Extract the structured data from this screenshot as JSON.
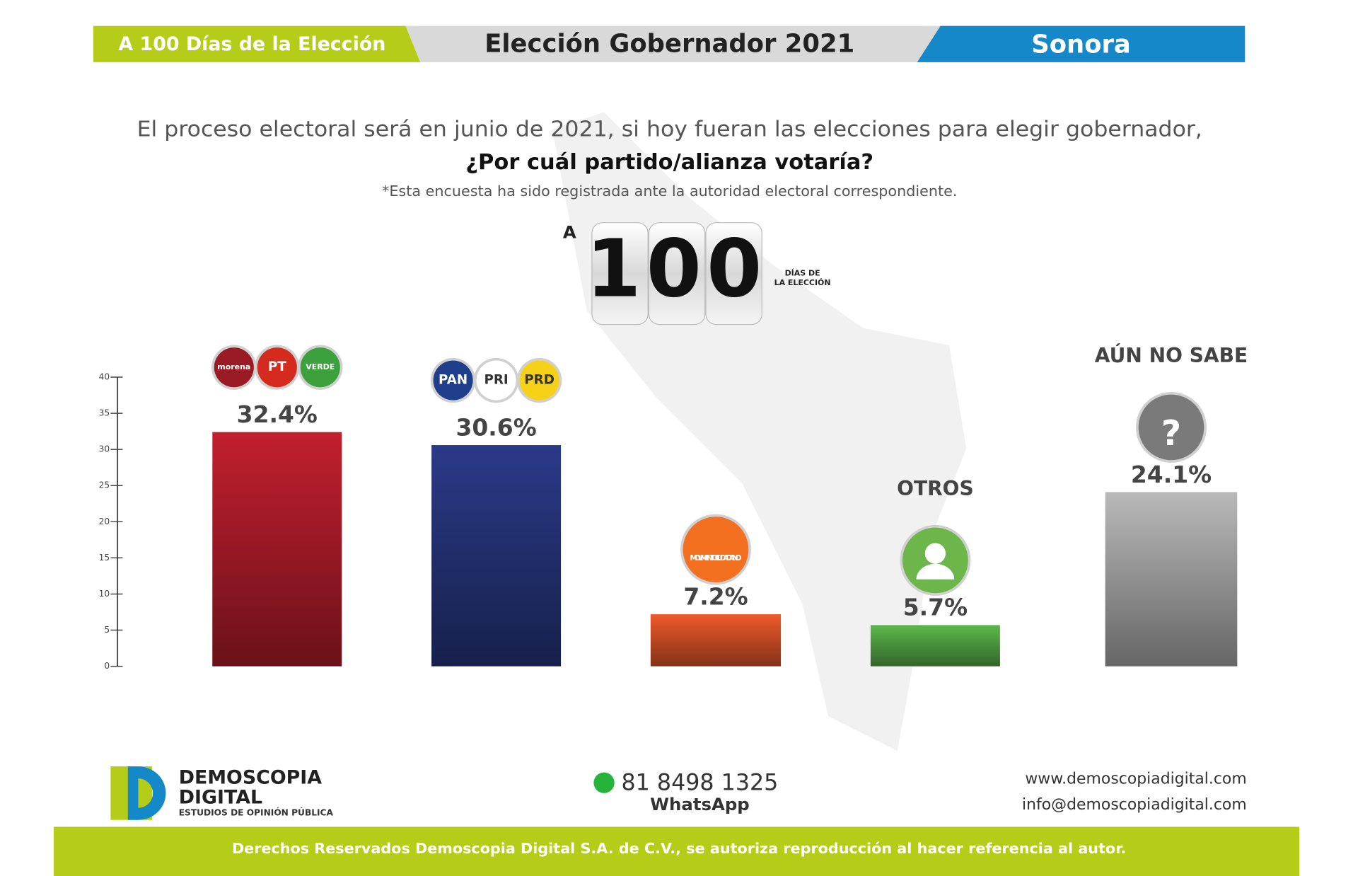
{
  "header": {
    "left": "A 100 Días de la Elección",
    "center": "Elección Gobernador 2021",
    "right": "Sonora"
  },
  "question": {
    "line1": "El proceso electoral será en junio de 2021, si hoy fueran las elecciones para elegir gobernador,",
    "line2": "¿Por cuál partido/alianza votaría?",
    "note": "*Esta encuesta ha sido registrada ante la autoridad electoral correspondiente."
  },
  "badge": {
    "prefix": "A",
    "number": "100",
    "line1": "DÍAS DE",
    "line2": "LA ELECCIÓN"
  },
  "chart_data": {
    "type": "bar",
    "categories": [
      null,
      null,
      null,
      "OTROS",
      "AÚN NO SABE"
    ],
    "values": [
      32.4,
      30.6,
      7.2,
      5.7,
      24.1
    ],
    "value_labels": [
      "32.4%",
      "30.6%",
      "7.2%",
      "5.7%",
      "24.1%"
    ],
    "colors": [
      "#c21f2e",
      "#2a3a88",
      "#ef5a2a",
      "#5cb84a",
      "#b9b9b9"
    ],
    "logos": [
      [
        "morena",
        "PT",
        "VERDE"
      ],
      [
        "PAN",
        "PRI",
        "PRD"
      ],
      [
        "MOVIMIENTO CIUDADANO"
      ],
      [],
      [
        "?"
      ]
    ],
    "logo_colors": [
      [
        "#9b1b24",
        "#d52b1e",
        "#3ca03c"
      ],
      [
        "#1f3e8c",
        "#ffffff",
        "#f7d117"
      ],
      [
        "#f37021"
      ],
      [
        "#6cb64a"
      ],
      [
        "#7a7a7a"
      ]
    ],
    "ylim": [
      0,
      40
    ],
    "yticks": [
      0,
      5,
      10,
      15,
      20,
      25,
      30,
      35,
      40
    ]
  },
  "footer": {
    "brand1": "DEMOSCOPIA",
    "brand2": "DIGITAL",
    "brand3": "ESTUDIOS DE OPINIÓN PÚBLICA",
    "phone": "81 8498 1325",
    "whatsapp": "WhatsApp",
    "web": "www.demoscopiadigital.com",
    "email": "info@demoscopiadigital.com",
    "rights": "Derechos Reservados Demoscopia Digital S.A. de C.V., se autoriza reproducción al hacer referencia al autor."
  }
}
